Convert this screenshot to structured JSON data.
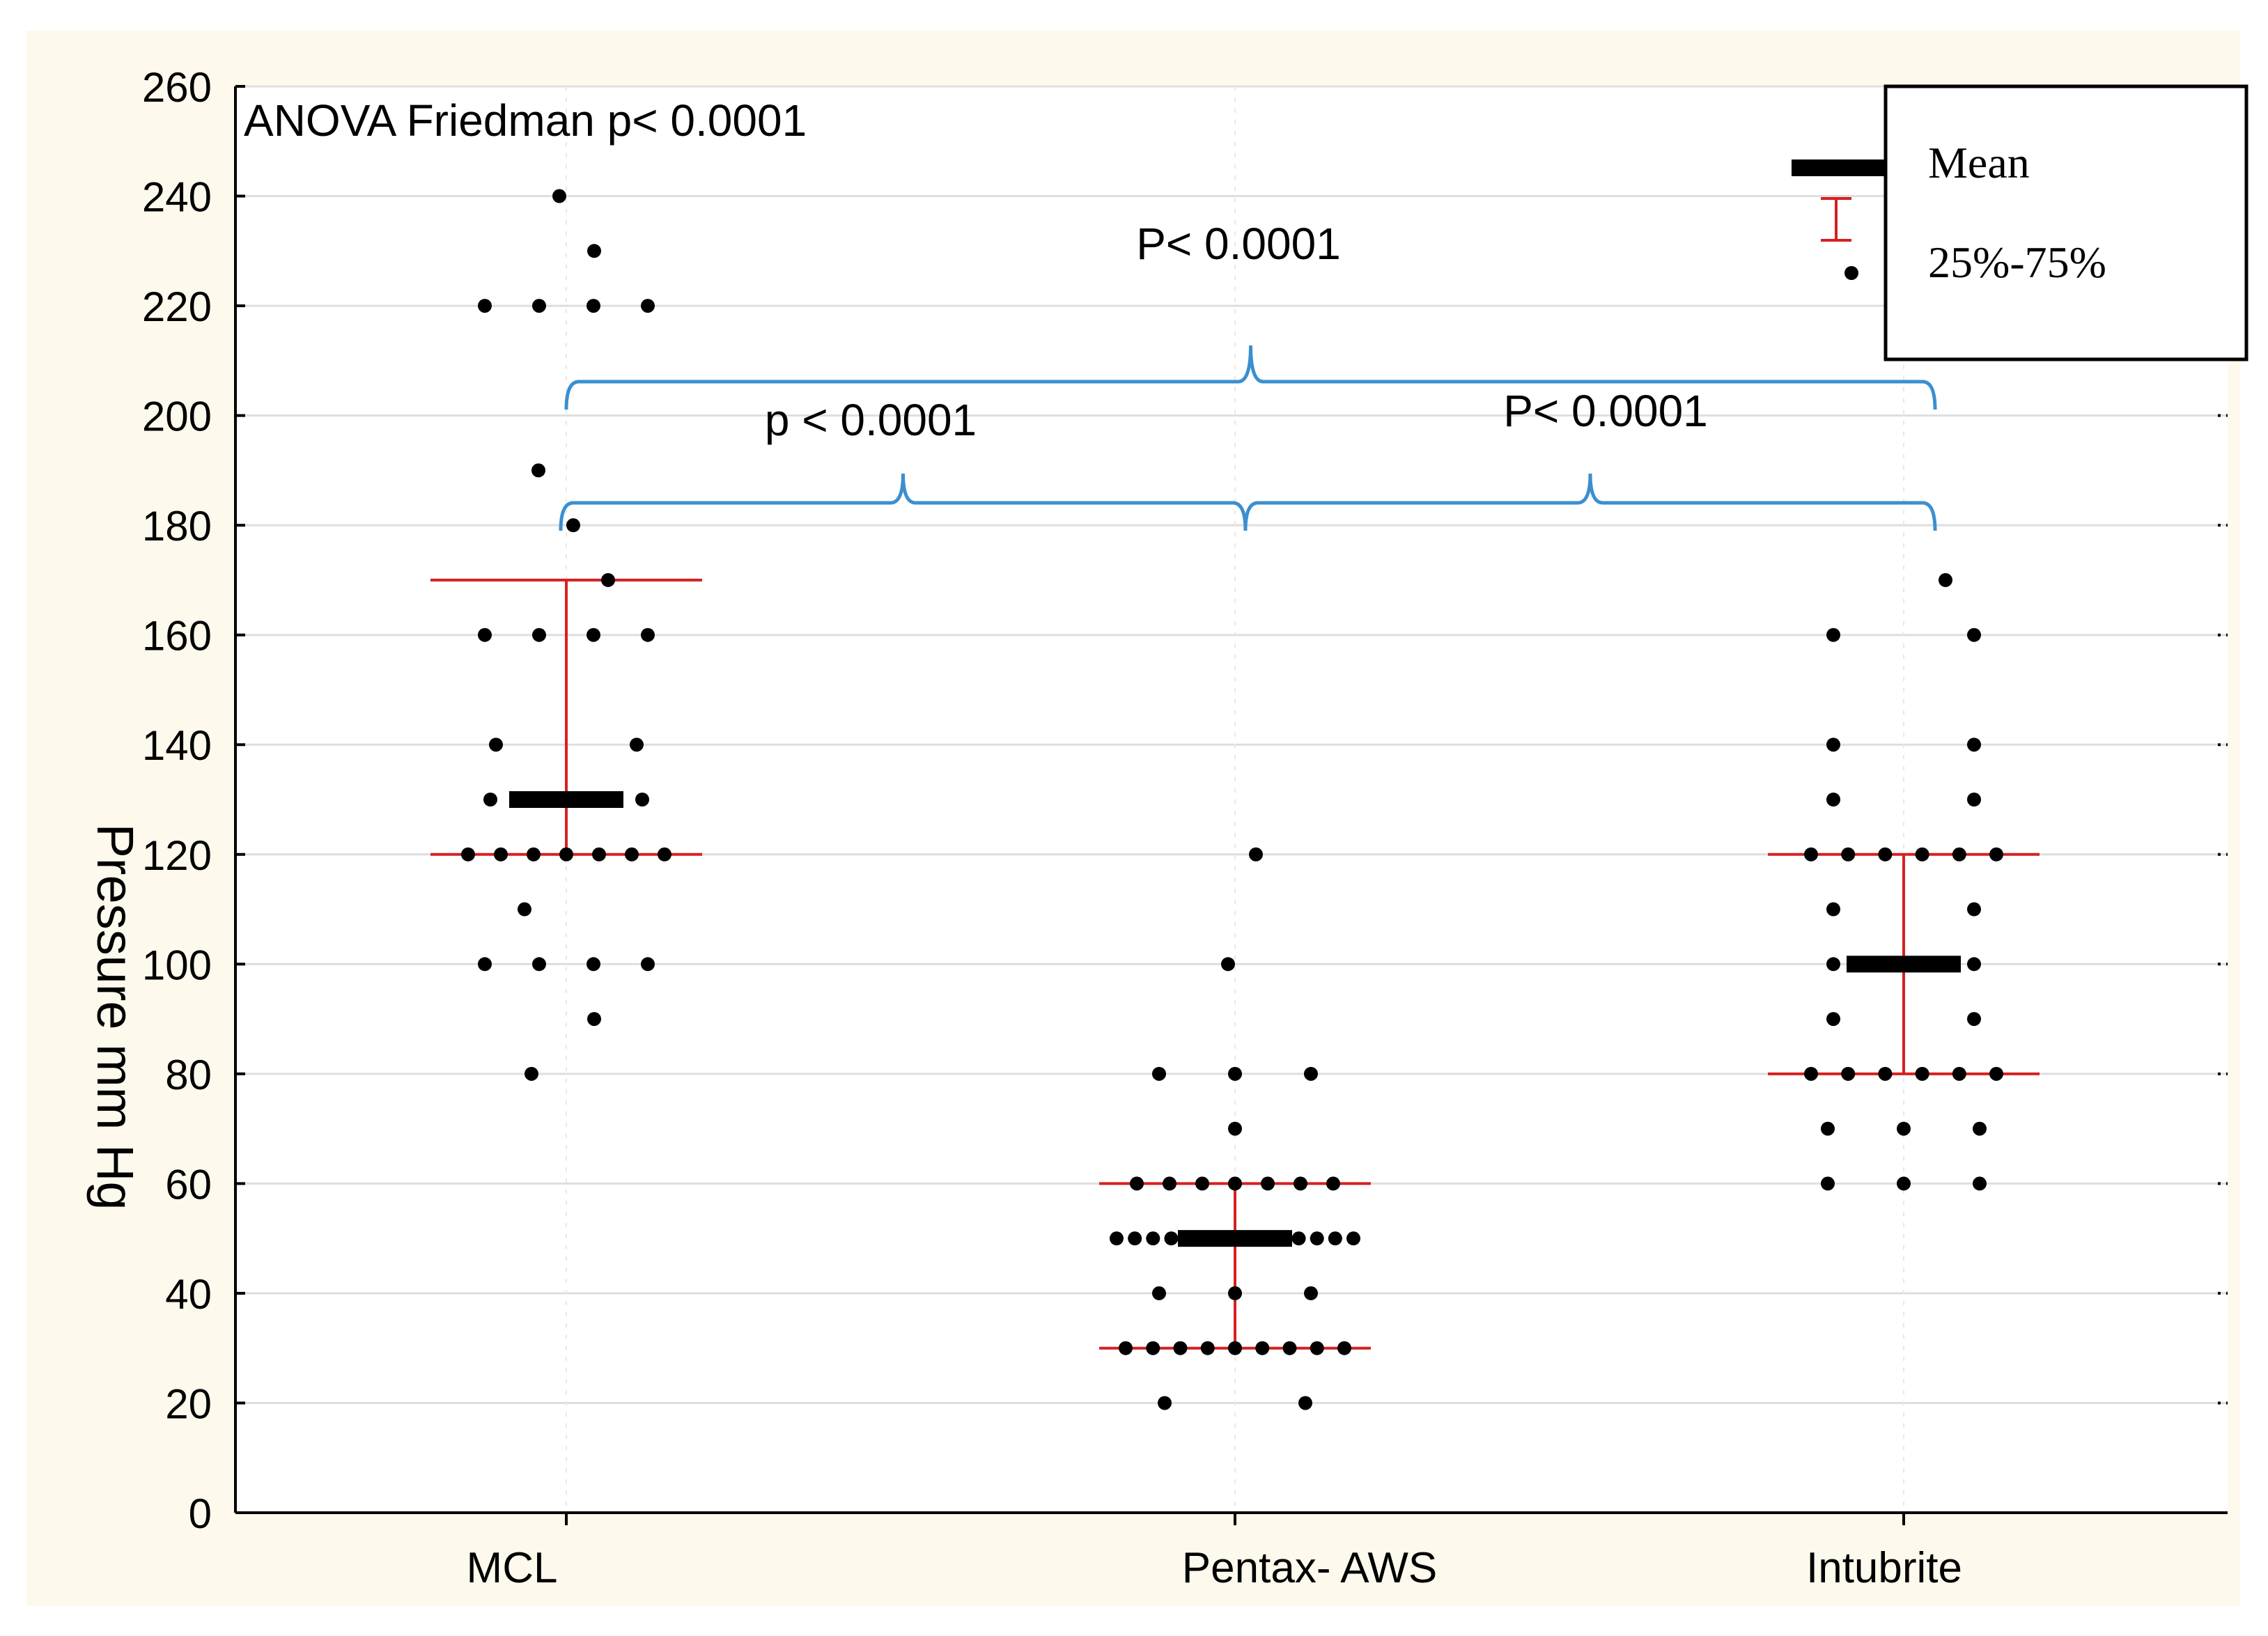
{
  "chart_data": {
    "type": "scatter",
    "subtype": "dot-plot with mean and interquartile range",
    "ylabel": "Pressure mm Hg",
    "xlabel": "",
    "ylim": [
      0,
      260
    ],
    "yticks": [
      0,
      20,
      40,
      60,
      80,
      100,
      120,
      140,
      160,
      180,
      200,
      220,
      240,
      260
    ],
    "grid": true,
    "categories": [
      "MCL",
      "Pentax- AWS",
      "Intubrite"
    ],
    "groups": [
      {
        "name": "MCL",
        "mean": 130,
        "q1": 120,
        "q3": 170,
        "points": [
          240,
          230,
          220,
          220,
          220,
          220,
          190,
          180,
          170,
          160,
          160,
          160,
          160,
          140,
          140,
          130,
          130,
          130,
          120,
          120,
          120,
          120,
          120,
          120,
          120,
          110,
          100,
          100,
          100,
          100,
          90,
          80
        ]
      },
      {
        "name": "Pentax- AWS",
        "mean": 50,
        "q1": 30,
        "q3": 60,
        "points": [
          120,
          100,
          80,
          80,
          80,
          70,
          60,
          60,
          60,
          60,
          60,
          60,
          60,
          50,
          50,
          50,
          50,
          50,
          50,
          50,
          50,
          50,
          50,
          50,
          50,
          50,
          50,
          40,
          40,
          40,
          30,
          30,
          30,
          30,
          30,
          30,
          30,
          30,
          30,
          20,
          20
        ]
      },
      {
        "name": "Intubrite",
        "mean": 100,
        "q1": 80,
        "q3": 120,
        "points": [
          170,
          160,
          160,
          140,
          140,
          130,
          130,
          120,
          120,
          120,
          120,
          120,
          120,
          110,
          110,
          100,
          100,
          90,
          90,
          80,
          80,
          80,
          80,
          80,
          80,
          70,
          70,
          70,
          60,
          60,
          60
        ]
      }
    ],
    "annotations": {
      "anova": "ANOVA Friedman p< 0.0001",
      "comparisons": [
        {
          "from": "MCL",
          "to": "Intubrite",
          "label": "P< 0.0001"
        },
        {
          "from": "MCL",
          "to": "Pentax- AWS",
          "label": "p < 0.0001"
        },
        {
          "from": "Pentax- AWS",
          "to": "Intubrite",
          "label": "P< 0.0001"
        }
      ]
    },
    "legend": {
      "position": "top-right",
      "mean_label": "Mean",
      "iqr_label": "25%-75%"
    },
    "colors": {
      "background": "#fdf9ec",
      "plot_background": "#ffffff",
      "points": "#000000",
      "mean_bar": "#000000",
      "iqr": "#d62020",
      "brackets": "#3a8fd0",
      "grid": "#dedede"
    }
  }
}
